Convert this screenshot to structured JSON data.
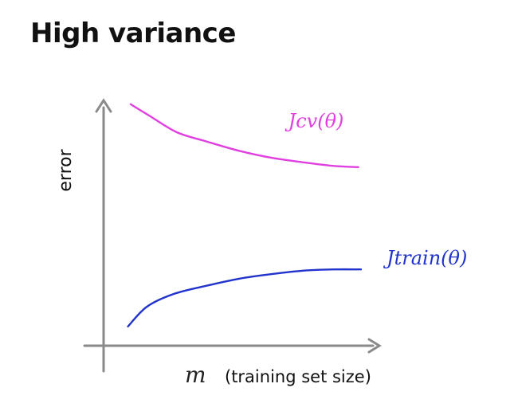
{
  "slide": {
    "title": "High variance"
  },
  "chart_data": {
    "type": "line",
    "title": "",
    "ylabel": "error",
    "xlabel_symbol": "m",
    "xlabel_text": "(training set size)",
    "xlim": [
      0,
      10
    ],
    "ylim": [
      0,
      10
    ],
    "grid": false,
    "series": [
      {
        "name": "Jcv(θ)",
        "color": "#e040e0",
        "x": [
          1.0,
          1.7,
          2.7,
          3.8,
          5.0,
          6.2,
          7.4,
          8.5,
          9.4
        ],
        "y": [
          9.9,
          9.4,
          8.7,
          8.3,
          7.9,
          7.6,
          7.4,
          7.25,
          7.2
        ]
      },
      {
        "name": "Jtrain(θ)",
        "color": "#2233cc",
        "x": [
          0.9,
          1.6,
          2.6,
          3.8,
          5.0,
          6.2,
          7.4,
          8.5,
          9.5
        ],
        "y": [
          0.35,
          1.2,
          1.75,
          2.1,
          2.4,
          2.6,
          2.75,
          2.8,
          2.8
        ]
      }
    ]
  }
}
